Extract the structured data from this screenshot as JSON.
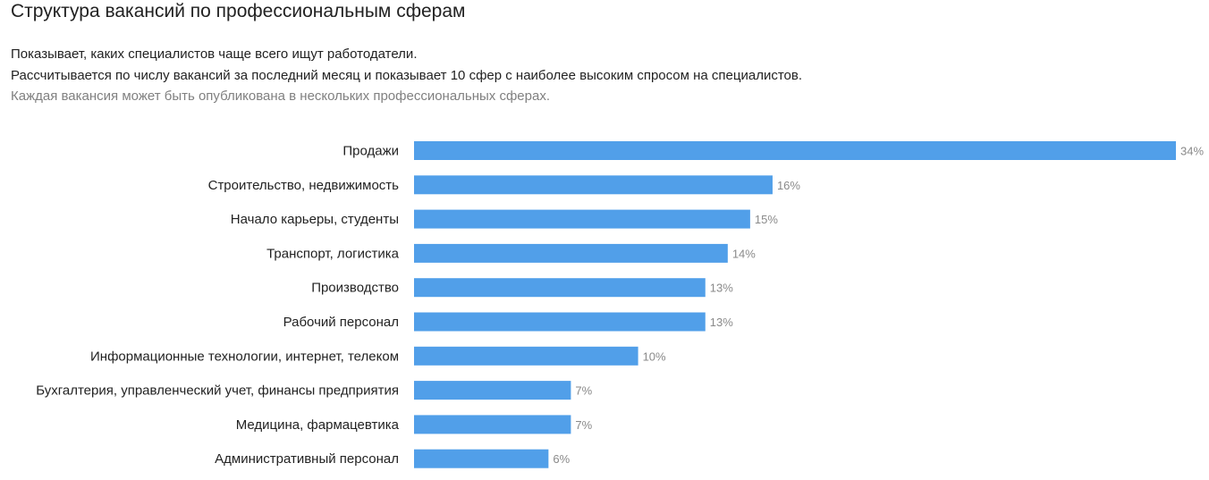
{
  "header": {
    "title": "Структура вакансий по профессиональным сферам",
    "description_line1": "Показывает, каких специалистов чаще всего ищут работодатели.",
    "description_line2": "Рассчитывается по числу вакансий за последний месяц и показывает 10 сфер с наиболее высоким спросом на специалистов.",
    "note": "Каждая вакансия может быть опубликована в нескольких профессиональных сферах."
  },
  "colors": {
    "bar": "#519fe9",
    "value_label": "#8a8a8a",
    "category_label": "#222222"
  },
  "chart_data": {
    "type": "bar",
    "orientation": "horizontal",
    "categories": [
      "Продажи",
      "Строительство, недвижимость",
      "Начало карьеры, студенты",
      "Транспорт, логистика",
      "Производство",
      "Рабочий персонал",
      "Информационные технологии, интернет, телеком",
      "Бухгалтерия, управленческий учет, финансы предприятия",
      "Медицина, фармацевтика",
      "Административный персонал"
    ],
    "values": [
      34,
      16,
      15,
      14,
      13,
      13,
      10,
      7,
      7,
      6
    ],
    "value_suffix": "%",
    "xlim": [
      0,
      34
    ],
    "title": "",
    "xlabel": "",
    "ylabel": "",
    "grid": false,
    "legend": "none"
  }
}
